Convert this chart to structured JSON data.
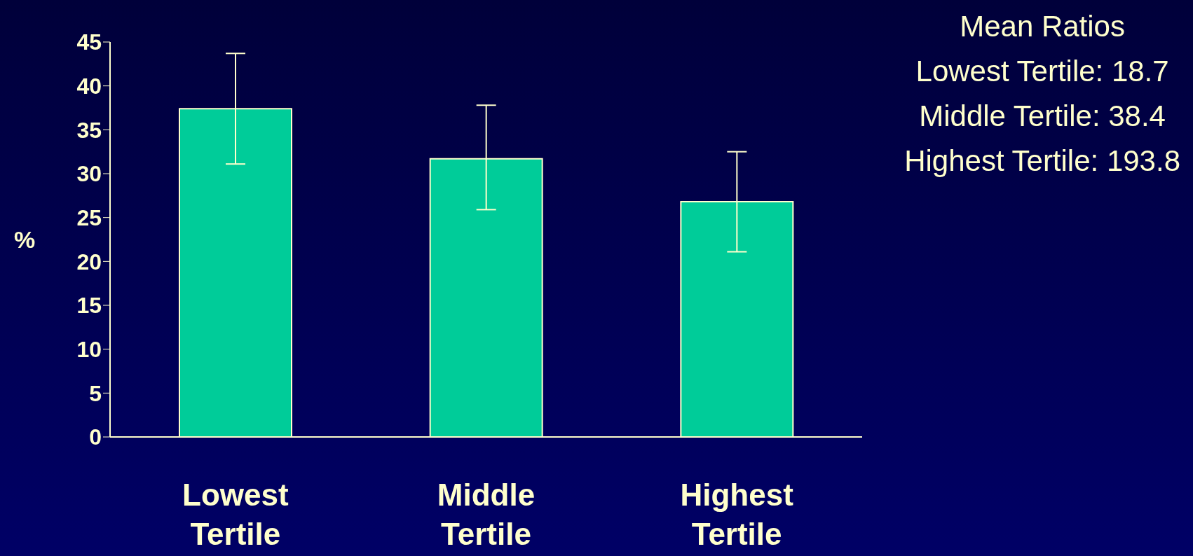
{
  "chart_data": {
    "type": "bar",
    "ylabel": "%",
    "categories": [
      "Lowest Tertile",
      "Middle Tertile",
      "Highest Tertile"
    ],
    "values": [
      37.4,
      31.7,
      26.8
    ],
    "errors": [
      [
        31.1,
        43.7
      ],
      [
        25.9,
        37.8
      ],
      [
        21.1,
        32.5
      ]
    ],
    "color": "#00cc99",
    "ylim": [
      0,
      45
    ],
    "yticks": [
      0,
      5,
      10,
      15,
      20,
      25,
      30,
      35,
      40,
      45
    ],
    "grid": false,
    "legend": false,
    "annotations": [
      "Mean Ratios",
      "Lowest Tertile: 18.7",
      "Middle Tertile: 38.4",
      "Highest Tertile: 193.8"
    ]
  }
}
